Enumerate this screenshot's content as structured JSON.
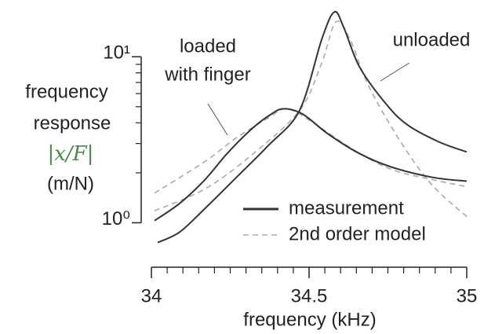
{
  "chart_data": {
    "type": "line",
    "xlabel": "frequency (kHz)",
    "ylabel": [
      "frequency",
      "response",
      "|x/F|",
      "(m/N)"
    ],
    "log_y": true,
    "xlim": [
      34,
      35
    ],
    "ylim": [
      0.54,
      19.7
    ],
    "xticks": [
      34,
      34.5,
      35
    ],
    "xminor_ticks": [
      34.05,
      34.1,
      34.15,
      34.2,
      34.25,
      34.3,
      34.35,
      34.4,
      34.45,
      34.55,
      34.6,
      34.65,
      34.7,
      34.75,
      34.8,
      34.85,
      34.9,
      34.95
    ],
    "yticks": [
      {
        "value": 1,
        "label": "10⁰"
      },
      {
        "value": 10,
        "label": "10¹"
      }
    ],
    "yminor_ticks": [
      2,
      3,
      4,
      5,
      6,
      7,
      8,
      9
    ],
    "legend": "lower right",
    "legend_entries": [
      {
        "name": "measurement",
        "color": "#333333",
        "dash": false
      },
      {
        "name": "2nd order model",
        "color": "#aaaaaa",
        "dash": true
      }
    ],
    "series": [
      {
        "color": "#333333",
        "dash": false,
        "x": [
          34.01,
          34.09,
          34.17,
          34.24,
          34.32,
          34.38,
          34.42,
          34.48,
          34.56,
          34.66,
          34.76,
          34.89,
          35
        ],
        "values": [
          1.03,
          1.31,
          1.82,
          2.61,
          3.7,
          4.51,
          4.86,
          4.51,
          3.43,
          2.61,
          2.17,
          1.88,
          1.78
        ]
      },
      {
        "color": "#333333",
        "dash": false,
        "x": [
          34.02,
          34.09,
          34.17,
          34.27,
          34.37,
          34.47,
          34.54,
          34.58,
          34.61,
          34.66,
          34.74,
          34.81,
          34.91,
          35
        ],
        "values": [
          0.76,
          0.88,
          1.22,
          1.88,
          2.91,
          4.76,
          12.7,
          18.6,
          15.0,
          8.68,
          5.31,
          3.91,
          3.08,
          2.67
        ]
      },
      {
        "color": "#aaaaaa",
        "dash": true,
        "x": [
          34.01,
          34.17,
          34.27,
          34.37,
          34.43,
          34.51,
          34.64,
          34.76,
          34.89,
          35
        ],
        "values": [
          1.51,
          2.34,
          3.25,
          4.27,
          4.86,
          4.04,
          2.76,
          2.1,
          1.82,
          1.65
        ]
      },
      {
        "color": "#aaaaaa",
        "dash": true,
        "x": [
          34.01,
          34.17,
          34.32,
          34.47,
          34.54,
          34.585,
          34.63,
          34.69,
          34.79,
          34.89,
          35
        ],
        "values": [
          1.18,
          1.6,
          2.58,
          4.76,
          9.16,
          16.2,
          12.7,
          6.6,
          3.08,
          1.69,
          1.09
        ]
      }
    ],
    "annotations": [
      [
        "loaded",
        "with finger"
      ],
      [
        "unloaded"
      ]
    ]
  }
}
